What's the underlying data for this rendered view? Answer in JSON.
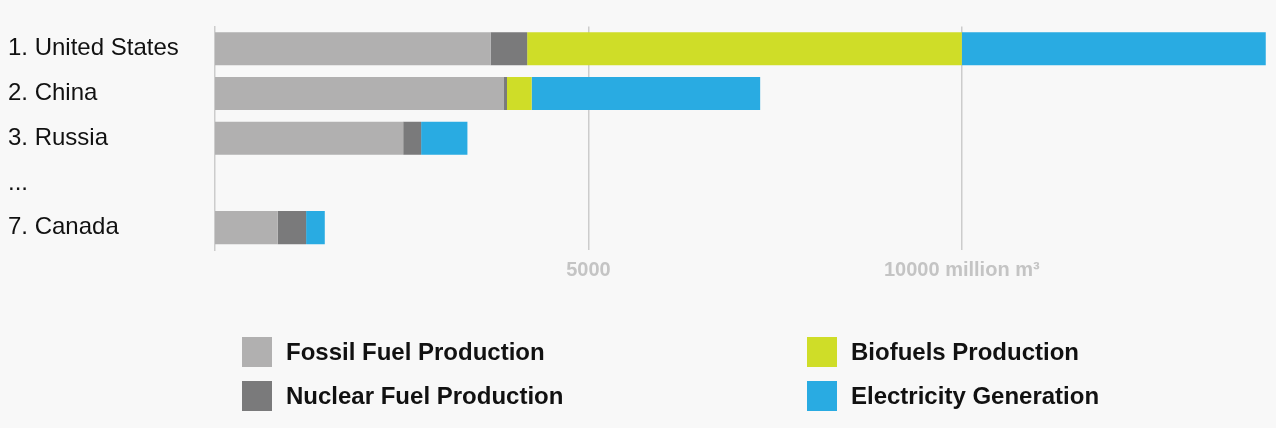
{
  "chart_data": {
    "type": "bar",
    "orientation": "horizontal",
    "stacked": true,
    "categories": [
      "1. United States",
      "2. China",
      "3. Russia",
      "...",
      "7. Canada"
    ],
    "series": [
      {
        "name": "Fossil Fuel Production",
        "color": "#b1b0b0",
        "values": [
          3690,
          3870,
          2520,
          null,
          840
        ]
      },
      {
        "name": "Nuclear Fuel Production",
        "color": "#7a7a7b",
        "values": [
          490,
          40,
          240,
          null,
          380
        ]
      },
      {
        "name": "Biofuels Production",
        "color": "#cfdd28",
        "values": [
          5820,
          330,
          null,
          null,
          null
        ]
      },
      {
        "name": "Electricity Generation",
        "color": "#29abe2",
        "values": [
          4070,
          3060,
          620,
          null,
          250
        ]
      }
    ],
    "xlim": [
      0,
      14100
    ],
    "xticks": [
      5000,
      {
        "value": 10000,
        "label": "10000 million m³"
      }
    ],
    "grid": "x",
    "legend": "bottom"
  }
}
